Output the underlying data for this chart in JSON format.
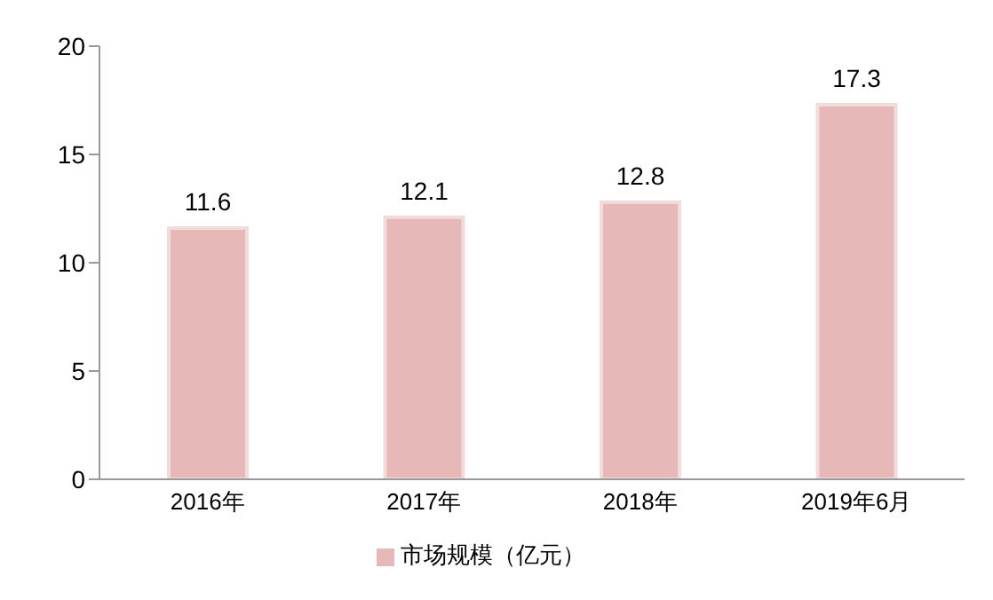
{
  "chart_data": {
    "type": "bar",
    "categories": [
      "2016年",
      "2017年",
      "2018年",
      "2019年6月"
    ],
    "series": [
      {
        "name": "市场规模（亿元）",
        "color": "#e6b9b8",
        "values": [
          11.6,
          12.1,
          12.8,
          17.3
        ]
      }
    ],
    "ylim": [
      0,
      20
    ],
    "yticks": [
      0,
      5,
      10,
      15,
      20
    ],
    "grid": false,
    "legend": "bottom",
    "data_labels": true
  }
}
